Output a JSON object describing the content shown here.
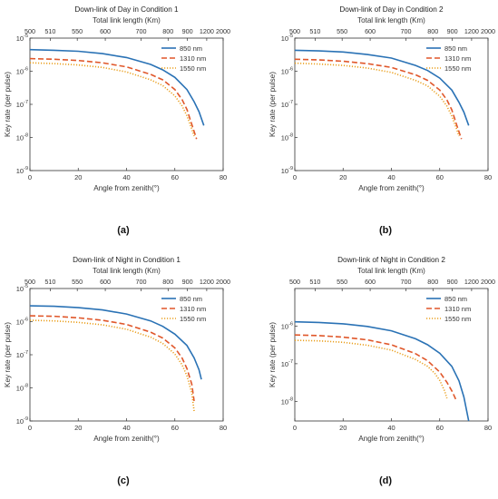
{
  "chart_data": [
    {
      "type": "line",
      "panel_label": "(a)",
      "title": "Down-link of Day in Condition 1",
      "xlabel": "Angle from zenith(°)",
      "ylabel": "Key rate (per pulse)",
      "x2label": "Total link length (Km)",
      "xlim": [
        0,
        80
      ],
      "xticks": [
        "0",
        "20",
        "40",
        "60",
        "80"
      ],
      "ylim": [
        1e-09,
        1e-05
      ],
      "yscale": "log",
      "yticks": [
        "10^-9",
        "10^-8",
        "10^-7",
        "10^-6",
        "10^-5"
      ],
      "x2ticks": [
        "500",
        "510",
        "550",
        "600",
        "700",
        "800",
        "900",
        "1200",
        "2000"
      ],
      "legend_position": "top-right",
      "series": [
        {
          "name": "850 nm",
          "color": "#2a72b5",
          "style": "solid",
          "x": [
            0,
            10,
            20,
            30,
            40,
            50,
            55,
            60,
            65,
            68,
            70,
            72
          ],
          "y": [
            4.5e-06,
            4.3e-06,
            4e-06,
            3.4e-06,
            2.6e-06,
            1.6e-06,
            1.1e-06,
            6.5e-07,
            2.8e-07,
            1.2e-07,
            6e-08,
            2.3e-08
          ]
        },
        {
          "name": "1310 nm",
          "color": "#e0572a",
          "style": "dashed",
          "x": [
            0,
            10,
            20,
            30,
            40,
            50,
            55,
            60,
            63,
            65,
            67,
            69
          ],
          "y": [
            2.4e-06,
            2.3e-06,
            2.1e-06,
            1.8e-06,
            1.35e-06,
            8e-07,
            5.5e-07,
            2.8e-07,
            1.4e-07,
            7e-08,
            2.5e-08,
            9e-09
          ]
        },
        {
          "name": "1550 nm",
          "color": "#eaa020",
          "style": "dotted",
          "x": [
            0,
            10,
            20,
            30,
            40,
            50,
            55,
            60,
            63,
            65,
            67,
            68
          ],
          "y": [
            1.8e-06,
            1.7e-06,
            1.55e-06,
            1.3e-06,
            9.5e-07,
            5.5e-07,
            3.7e-07,
            1.8e-07,
            9e-08,
            4.5e-08,
            1.8e-08,
            1.1e-08
          ]
        }
      ]
    },
    {
      "type": "line",
      "panel_label": "(b)",
      "title": "Down-link of Day in Condition 2",
      "xlabel": "Angle from zenith(°)",
      "ylabel": "Key rate (per pulse)",
      "x2label": "Total link length (Km)",
      "xlim": [
        0,
        80
      ],
      "xticks": [
        "0",
        "20",
        "40",
        "60",
        "80"
      ],
      "ylim": [
        1e-09,
        1e-05
      ],
      "yscale": "log",
      "yticks": [
        "10^-9",
        "10^-8",
        "10^-7",
        "10^-6",
        "10^-5"
      ],
      "x2ticks": [
        "500",
        "510",
        "550",
        "600",
        "700",
        "800",
        "900",
        "1200",
        "2000"
      ],
      "legend_position": "top-right",
      "series": [
        {
          "name": "850 nm",
          "color": "#2a72b5",
          "style": "solid",
          "x": [
            0,
            10,
            20,
            30,
            40,
            50,
            55,
            60,
            65,
            68,
            70,
            72
          ],
          "y": [
            4.3e-06,
            4.1e-06,
            3.8e-06,
            3.2e-06,
            2.5e-06,
            1.5e-06,
            1.05e-06,
            6.2e-07,
            2.7e-07,
            1.15e-07,
            5.8e-08,
            2.3e-08
          ]
        },
        {
          "name": "1310 nm",
          "color": "#e0572a",
          "style": "dashed",
          "x": [
            0,
            10,
            20,
            30,
            40,
            50,
            55,
            60,
            63,
            65,
            67,
            69
          ],
          "y": [
            2.3e-06,
            2.2e-06,
            2e-06,
            1.7e-06,
            1.3e-06,
            7.8e-07,
            5.3e-07,
            2.7e-07,
            1.35e-07,
            6.8e-08,
            2.4e-08,
            9e-09
          ]
        },
        {
          "name": "1550 nm",
          "color": "#eaa020",
          "style": "dotted",
          "x": [
            0,
            10,
            20,
            30,
            40,
            50,
            55,
            60,
            63,
            65,
            67,
            68
          ],
          "y": [
            1.75e-06,
            1.65e-06,
            1.5e-06,
            1.25e-06,
            9.2e-07,
            5.3e-07,
            3.6e-07,
            1.75e-07,
            8.8e-08,
            4.4e-08,
            1.8e-08,
            1.1e-08
          ]
        }
      ]
    },
    {
      "type": "line",
      "panel_label": "(c)",
      "title": "Down-link of Night in Condition 1",
      "xlabel": "Angle from zenith(°)",
      "ylabel": "Key rate (per pulse)",
      "x2label": "Total link length (Km)",
      "xlim": [
        0,
        80
      ],
      "xticks": [
        "0",
        "20",
        "40",
        "60",
        "80"
      ],
      "ylim": [
        1e-09,
        1e-05
      ],
      "yscale": "log",
      "yticks": [
        "10^-9",
        "10^-8",
        "10^-7",
        "10^-6",
        "10^-5"
      ],
      "x2ticks": [
        "500",
        "510",
        "550",
        "600",
        "700",
        "800",
        "900",
        "1200",
        "2000"
      ],
      "legend_position": "top-right",
      "series": [
        {
          "name": "850 nm",
          "color": "#2a72b5",
          "style": "solid",
          "x": [
            0,
            10,
            20,
            30,
            40,
            50,
            55,
            60,
            65,
            68,
            70,
            71
          ],
          "y": [
            3e-06,
            2.9e-06,
            2.65e-06,
            2.25e-06,
            1.7e-06,
            1.05e-06,
            7.2e-07,
            4.2e-07,
            1.9e-07,
            8e-08,
            3.5e-08,
            1.8e-08
          ]
        },
        {
          "name": "1310 nm",
          "color": "#e0572a",
          "style": "dashed",
          "x": [
            0,
            10,
            20,
            30,
            40,
            50,
            55,
            60,
            63,
            65,
            67,
            68
          ],
          "y": [
            1.5e-06,
            1.45e-06,
            1.3e-06,
            1.1e-06,
            8.2e-07,
            4.8e-07,
            3.2e-07,
            1.6e-07,
            8e-08,
            3.8e-08,
            1.3e-08,
            4e-09
          ]
        },
        {
          "name": "1550 nm",
          "color": "#eaa020",
          "style": "dotted",
          "x": [
            0,
            10,
            20,
            30,
            40,
            50,
            55,
            60,
            63,
            65,
            67,
            68
          ],
          "y": [
            1.1e-06,
            1.05e-06,
            9.5e-07,
            8e-07,
            5.9e-07,
            3.4e-07,
            2.2e-07,
            1.05e-07,
            5e-08,
            2.3e-08,
            7e-09,
            2e-09
          ]
        }
      ]
    },
    {
      "type": "line",
      "panel_label": "(d)",
      "title": "Down-link of Night in Condition 2",
      "xlabel": "Angle from zenith(°)",
      "ylabel": "Key rate (per pulse)",
      "x2label": "Total link length (Km)",
      "xlim": [
        0,
        80
      ],
      "xticks": [
        "0",
        "20",
        "40",
        "60",
        "80"
      ],
      "ylim": [
        3e-09,
        1e-05
      ],
      "yscale": "log",
      "yticks": [
        "10^-8",
        "10^-7",
        "10^-6"
      ],
      "x2ticks": [
        "500",
        "510",
        "550",
        "600",
        "700",
        "800",
        "900",
        "1200",
        "2000"
      ],
      "legend_position": "top-right",
      "series": [
        {
          "name": "850 nm",
          "color": "#2a72b5",
          "style": "solid",
          "x": [
            0,
            10,
            20,
            30,
            40,
            50,
            55,
            60,
            65,
            68,
            70,
            72
          ],
          "y": [
            1.3e-06,
            1.25e-06,
            1.15e-06,
            9.8e-07,
            7.5e-07,
            4.6e-07,
            3.2e-07,
            1.9e-07,
            8.5e-08,
            3.5e-08,
            1.3e-08,
            3e-09
          ]
        },
        {
          "name": "1310 nm",
          "color": "#e0572a",
          "style": "dashed",
          "x": [
            0,
            10,
            20,
            30,
            40,
            50,
            55,
            60,
            63,
            65,
            66,
            67
          ],
          "y": [
            5.8e-07,
            5.6e-07,
            5.1e-07,
            4.3e-07,
            3.2e-07,
            1.85e-07,
            1.2e-07,
            6e-08,
            3.2e-08,
            1.9e-08,
            1.4e-08,
            1e-08
          ]
        },
        {
          "name": "1550 nm",
          "color": "#eaa020",
          "style": "dotted",
          "x": [
            0,
            10,
            20,
            30,
            40,
            50,
            55,
            58,
            60,
            62,
            63
          ],
          "y": [
            4.2e-07,
            4.05e-07,
            3.7e-07,
            3.1e-07,
            2.3e-07,
            1.3e-07,
            8.5e-08,
            5.5e-08,
            3.6e-08,
            1.9e-08,
            1.2e-08
          ]
        }
      ]
    }
  ]
}
